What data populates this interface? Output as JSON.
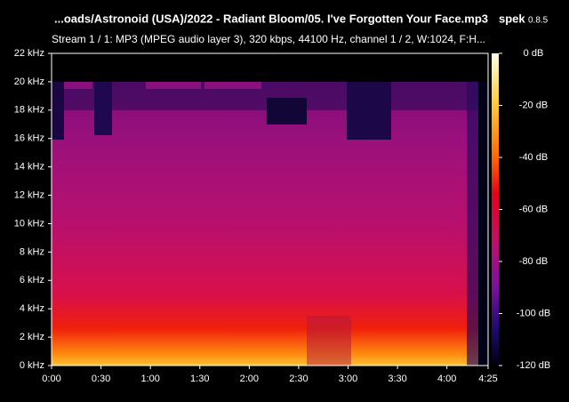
{
  "chart_data": {
    "type": "spectrogram",
    "title": "...oads/Astronoid (USA)/2022 - Radiant Bloom/05. I've Forgotten Your Face.mp3",
    "app": "spek",
    "version": "0.8.5",
    "subtitle": "Stream 1 / 1: MP3 (MPEG audio layer 3), 320 kbps, 44100 Hz, channel 1 / 2, W:1024, F:H...",
    "xlim": [
      0,
      265
    ],
    "xticks": [
      {
        "value": 0,
        "label": "0:00"
      },
      {
        "value": 30,
        "label": "0:30"
      },
      {
        "value": 60,
        "label": "1:00"
      },
      {
        "value": 90,
        "label": "1:30"
      },
      {
        "value": 120,
        "label": "2:00"
      },
      {
        "value": 150,
        "label": "2:30"
      },
      {
        "value": 180,
        "label": "3:00"
      },
      {
        "value": 210,
        "label": "3:30"
      },
      {
        "value": 240,
        "label": "4:00"
      },
      {
        "value": 265,
        "label": "4:25"
      }
    ],
    "ylim": [
      0,
      22
    ],
    "yticks": [
      {
        "value": 0,
        "label": "0 kHz"
      },
      {
        "value": 2,
        "label": "2 kHz"
      },
      {
        "value": 4,
        "label": "4 kHz"
      },
      {
        "value": 6,
        "label": "6 kHz"
      },
      {
        "value": 8,
        "label": "8 kHz"
      },
      {
        "value": 10,
        "label": "10 kHz"
      },
      {
        "value": 12,
        "label": "12 kHz"
      },
      {
        "value": 14,
        "label": "14 kHz"
      },
      {
        "value": 16,
        "label": "16 kHz"
      },
      {
        "value": 18,
        "label": "18 kHz"
      },
      {
        "value": 20,
        "label": "20 kHz"
      },
      {
        "value": 22,
        "label": "22 kHz"
      }
    ],
    "zlim": [
      -120,
      0
    ],
    "zticks": [
      {
        "value": 0,
        "label": "0 dB"
      },
      {
        "value": -20,
        "label": "-20 dB"
      },
      {
        "value": -40,
        "label": "-40 dB"
      },
      {
        "value": -60,
        "label": "-60 dB"
      },
      {
        "value": -80,
        "label": "-80 dB"
      },
      {
        "value": -100,
        "label": "-100 dB"
      },
      {
        "value": -120,
        "label": "-120 dB"
      }
    ]
  }
}
